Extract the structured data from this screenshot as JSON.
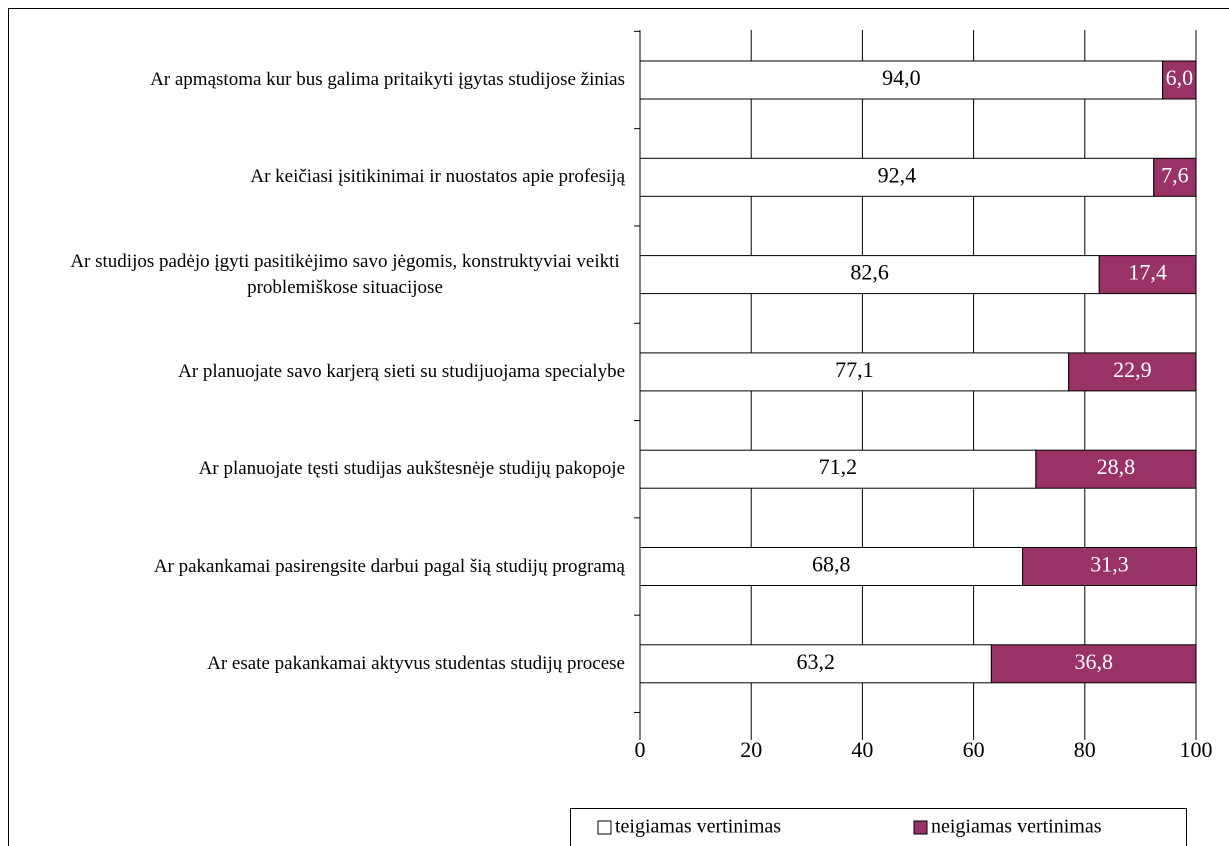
{
  "chart_data": {
    "type": "stacked-bar-horizontal",
    "categories": [
      "Ar  apmąstoma kur bus galima pritaikyti įgytas studijose žinias",
      "Ar keičiasi įsitikinimai ir nuostatos apie profesiją",
      "Ar studijos padėjo įgyti pasitikėjimo savo jėgomis, konstruktyviai veikti problemiškose situacijose",
      "Ar planuojate savo karjerą sieti su studijuojama specialybe",
      "Ar planuojate tęsti studijas aukštesnėje studijų pakopoje",
      "Ar pakankamai pasirengsite darbui pagal šią studijų programą",
      "Ar esate pakankamai aktyvus studentas studijų procese"
    ],
    "series": [
      {
        "name": "teigiamas vertinimas",
        "color": "#ffffff",
        "label_color": "#000000",
        "values": [
          94.0,
          92.4,
          82.6,
          77.1,
          71.2,
          68.8,
          63.2
        ],
        "value_labels": [
          "94,0",
          "92,4",
          "82,6",
          "77,1",
          "71,2",
          "68,8",
          "63,2"
        ]
      },
      {
        "name": "neigiamas vertinimas",
        "color": "#993366",
        "label_color": "#ffffff",
        "values": [
          6.0,
          7.6,
          17.4,
          22.9,
          28.8,
          31.3,
          36.8
        ],
        "value_labels": [
          "6,0",
          "7,6",
          "17,4",
          "22,9",
          "28,8",
          "31,3",
          "36,8"
        ]
      }
    ],
    "xlim": [
      0,
      100
    ],
    "xticks": [
      0,
      20,
      40,
      60,
      80,
      100
    ],
    "grid": true
  }
}
